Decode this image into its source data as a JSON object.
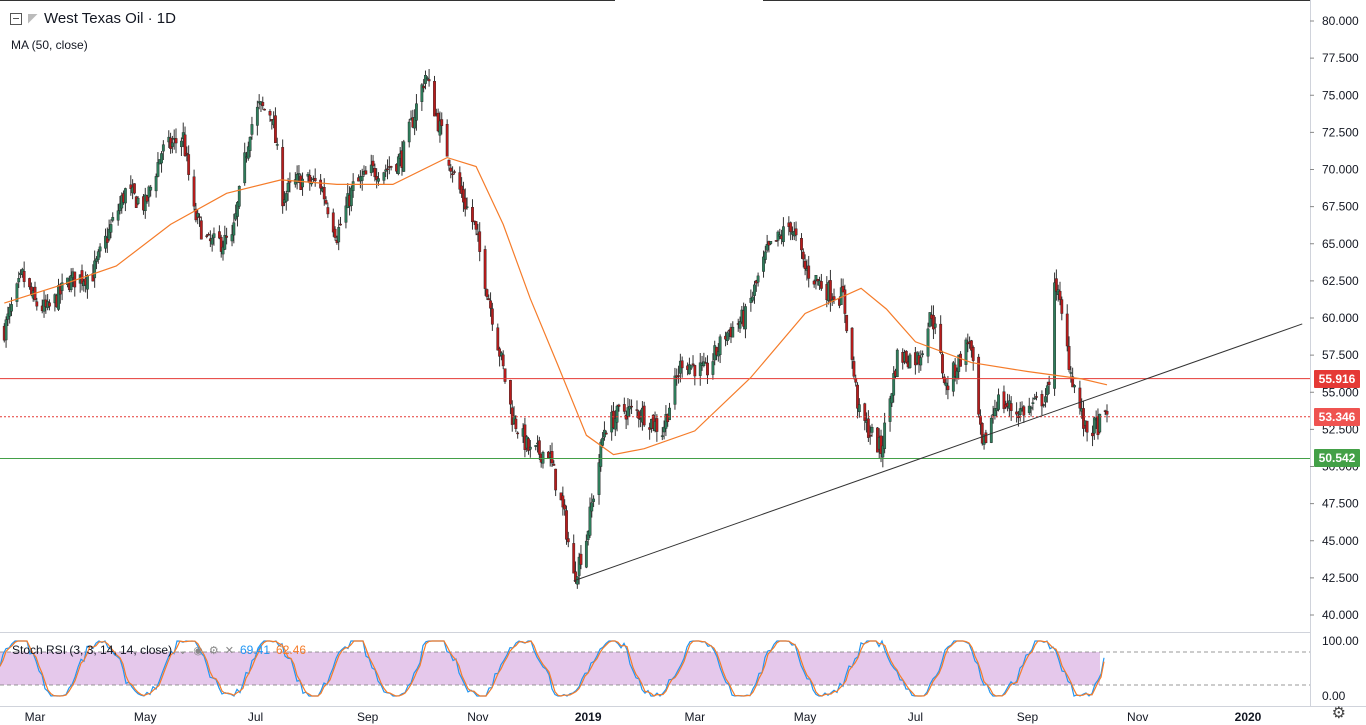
{
  "header": {
    "title": "West Texas Oil · 1D",
    "study": "MA (50, close)"
  },
  "stoch": {
    "label": "Stoch RSI (3, 3, 14, 14, close)",
    "k_value": "69.41",
    "d_value": "62.46"
  },
  "price_tags": {
    "resistance": {
      "text": "55.916",
      "color": "#e53935"
    },
    "last": {
      "text": "53.346",
      "color": "#ef5350"
    },
    "support": {
      "text": "50.542",
      "color": "#43a047"
    }
  },
  "icons": {
    "collapse": "collapse-box-icon",
    "symbol": "symbol-flag-icon",
    "settings": "gear-icon"
  },
  "chart_data": {
    "type": "candlestick",
    "title": "West Texas Oil · 1D",
    "ylim": [
      40.0,
      80.0
    ],
    "y_ticks": [
      "80.000",
      "77.500",
      "75.000",
      "72.500",
      "70.000",
      "67.500",
      "65.000",
      "62.500",
      "60.000",
      "57.500",
      "55.000",
      "52.500",
      "50.000",
      "47.500",
      "45.000",
      "42.500",
      "40.000"
    ],
    "x_ticks": [
      "Mar",
      "May",
      "Jul",
      "Sep",
      "Nov",
      "2019",
      "Mar",
      "May",
      "Jul",
      "Sep",
      "Nov",
      "2020"
    ],
    "x_tick_dates": [
      "2018-03-01",
      "2018-05-01",
      "2018-07-01",
      "2018-09-01",
      "2018-11-01",
      "2019-01-01",
      "2019-03-01",
      "2019-05-01",
      "2019-07-01",
      "2019-09-01",
      "2019-11-01",
      "2020-01-01"
    ],
    "close_path": [
      [
        "2018-02-12",
        59.2
      ],
      [
        "2018-02-22",
        62.8
      ],
      [
        "2018-03-01",
        61.0
      ],
      [
        "2018-03-08",
        60.5
      ],
      [
        "2018-03-20",
        62.5
      ],
      [
        "2018-04-02",
        63.0
      ],
      [
        "2018-04-10",
        65.5
      ],
      [
        "2018-04-20",
        68.5
      ],
      [
        "2018-05-01",
        67.6
      ],
      [
        "2018-05-10",
        71.2
      ],
      [
        "2018-05-22",
        72.2
      ],
      [
        "2018-05-28",
        67.0
      ],
      [
        "2018-06-05",
        65.0
      ],
      [
        "2018-06-18",
        65.2
      ],
      [
        "2018-06-28",
        72.8
      ],
      [
        "2018-07-03",
        74.2
      ],
      [
        "2018-07-10",
        73.8
      ],
      [
        "2018-07-16",
        68.2
      ],
      [
        "2018-07-25",
        69.3
      ],
      [
        "2018-08-06",
        69.0
      ],
      [
        "2018-08-15",
        65.6
      ],
      [
        "2018-08-24",
        68.8
      ],
      [
        "2018-09-04",
        69.9
      ],
      [
        "2018-09-12",
        70.1
      ],
      [
        "2018-09-20",
        70.8
      ],
      [
        "2018-10-03",
        76.4
      ],
      [
        "2018-10-10",
        73.2
      ],
      [
        "2018-10-20",
        69.2
      ],
      [
        "2018-10-30",
        66.2
      ],
      [
        "2018-11-09",
        60.2
      ],
      [
        "2018-11-20",
        53.4
      ],
      [
        "2018-11-30",
        50.9
      ],
      [
        "2018-12-10",
        51.0
      ],
      [
        "2018-12-19",
        46.5
      ],
      [
        "2018-12-24",
        42.5
      ],
      [
        "2018-12-31",
        45.2
      ],
      [
        "2019-01-10",
        52.6
      ],
      [
        "2019-01-20",
        53.8
      ],
      [
        "2019-01-31",
        53.6
      ],
      [
        "2019-02-11",
        52.4
      ],
      [
        "2019-02-22",
        57.2
      ],
      [
        "2019-03-07",
        56.3
      ],
      [
        "2019-03-18",
        58.9
      ],
      [
        "2019-03-29",
        60.1
      ],
      [
        "2019-04-10",
        64.4
      ],
      [
        "2019-04-23",
        66.3
      ],
      [
        "2019-05-01",
        63.3
      ],
      [
        "2019-05-14",
        61.8
      ],
      [
        "2019-05-22",
        61.4
      ],
      [
        "2019-05-31",
        53.5
      ],
      [
        "2019-06-12",
        51.1
      ],
      [
        "2019-06-21",
        57.4
      ],
      [
        "2019-07-03",
        57.3
      ],
      [
        "2019-07-10",
        60.4
      ],
      [
        "2019-07-18",
        55.3
      ],
      [
        "2019-07-31",
        58.6
      ],
      [
        "2019-08-07",
        51.1
      ],
      [
        "2019-08-15",
        54.5
      ],
      [
        "2019-08-26",
        53.7
      ],
      [
        "2019-09-03",
        53.9
      ],
      [
        "2019-09-13",
        55.0
      ],
      [
        "2019-09-16",
        62.9
      ],
      [
        "2019-09-25",
        56.4
      ],
      [
        "2019-10-03",
        52.4
      ],
      [
        "2019-10-08",
        52.6
      ],
      [
        "2019-10-15",
        53.3
      ]
    ],
    "moving_average_path": [
      [
        "2018-02-12",
        61.0
      ],
      [
        "2018-03-15",
        62.2
      ],
      [
        "2018-04-15",
        63.5
      ],
      [
        "2018-05-15",
        66.3
      ],
      [
        "2018-06-15",
        68.4
      ],
      [
        "2018-07-15",
        69.3
      ],
      [
        "2018-08-15",
        69.0
      ],
      [
        "2018-09-15",
        69.0
      ],
      [
        "2018-10-15",
        70.8
      ],
      [
        "2018-10-31",
        70.2
      ],
      [
        "2018-11-15",
        66.3
      ],
      [
        "2018-11-30",
        61.3
      ],
      [
        "2018-12-15",
        56.9
      ],
      [
        "2018-12-31",
        52.1
      ],
      [
        "2019-01-15",
        50.8
      ],
      [
        "2019-02-01",
        51.2
      ],
      [
        "2019-03-01",
        52.4
      ],
      [
        "2019-04-01",
        56.0
      ],
      [
        "2019-05-01",
        60.3
      ],
      [
        "2019-06-01",
        62.0
      ],
      [
        "2019-06-15",
        60.6
      ],
      [
        "2019-07-01",
        58.4
      ],
      [
        "2019-08-01",
        57.0
      ],
      [
        "2019-09-01",
        56.4
      ],
      [
        "2019-10-01",
        55.9
      ],
      [
        "2019-10-15",
        55.5
      ]
    ],
    "horizontal_levels": [
      {
        "value": 55.916,
        "color": "#e53935",
        "style": "solid"
      },
      {
        "value": 53.346,
        "color": "#e53935",
        "style": "dotted"
      },
      {
        "value": 50.542,
        "color": "#43a047",
        "style": "solid"
      }
    ],
    "trendline": {
      "from": [
        "2018-12-24",
        42.3
      ],
      "to": [
        "2020-01-31",
        59.6
      ],
      "color": "#333333"
    },
    "stoch_rsi": {
      "ylim": [
        0,
        100
      ],
      "y_ticks": [
        "100.00",
        "0.00"
      ],
      "bands": [
        20,
        80
      ],
      "k_series_color": "#2196f3",
      "d_series_color": "#f57c2a",
      "band_fill": "#e1bee7",
      "k_last": 69.41,
      "d_last": 62.46
    }
  }
}
